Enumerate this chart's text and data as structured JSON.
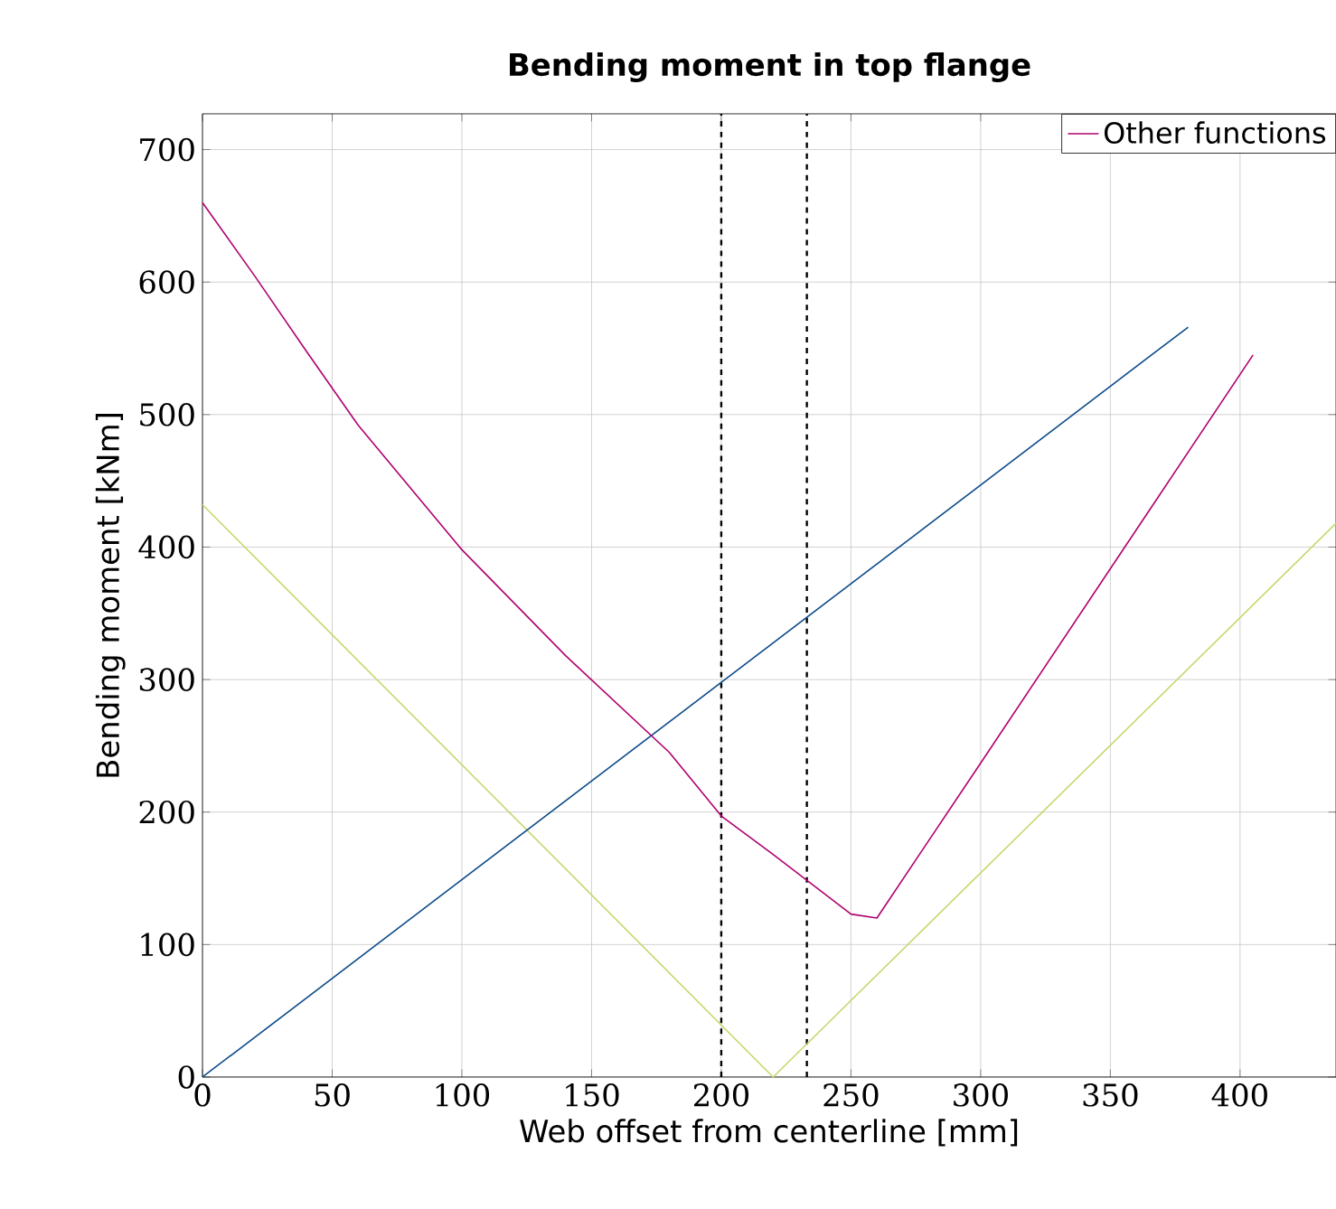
{
  "chart_data": {
    "type": "line",
    "title": "Bending moment in top flange",
    "xlabel": "Web offset from centerline [mm]",
    "ylabel": "Bending moment [kNm]",
    "xlim": [
      0,
      437
    ],
    "ylim": [
      0,
      727
    ],
    "xticks": [
      0,
      50,
      100,
      150,
      200,
      250,
      300,
      350,
      400
    ],
    "yticks": [
      0,
      100,
      200,
      300,
      400,
      500,
      600,
      700
    ],
    "grid": true,
    "legend": "top right",
    "marker": "none",
    "line_style": "solid",
    "series": [
      {
        "color": "#c5d86d",
        "x": [
          0,
          220,
          437
        ],
        "values": [
          432,
          0,
          418
        ]
      },
      {
        "color": "#0b4a8a",
        "x": [
          0,
          380
        ],
        "values": [
          0,
          566
        ]
      },
      {
        "name": "Other functions",
        "color": "#b0006e",
        "x": [
          0,
          20,
          40,
          60,
          100,
          140,
          180,
          200,
          220,
          250,
          260,
          300,
          405
        ],
        "values": [
          660,
          605,
          548,
          492,
          398,
          318,
          245,
          197,
          168,
          123,
          120,
          237,
          545
        ]
      }
    ],
    "ref_lines": [
      {
        "axis": "x",
        "value": 200,
        "color": "#000000",
        "line_style": "dashed"
      },
      {
        "axis": "x",
        "value": 233,
        "color": "#000000",
        "line_style": "dashed"
      }
    ]
  }
}
